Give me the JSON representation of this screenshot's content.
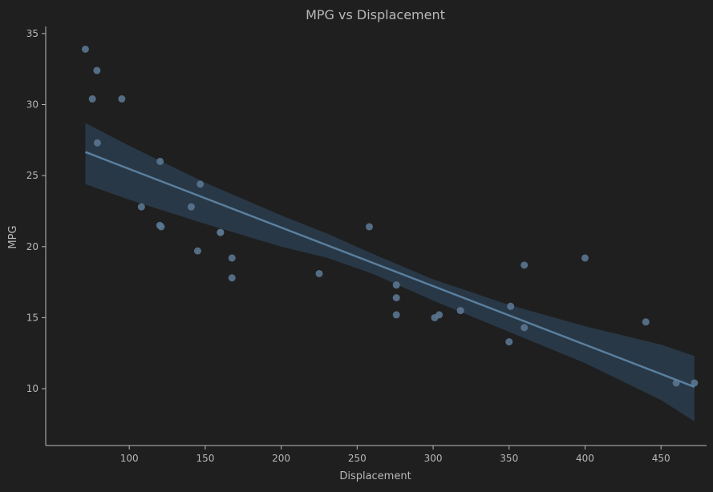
{
  "chart_data": {
    "type": "scatter",
    "title": "MPG vs Displacement",
    "xlabel": "Displacement",
    "ylabel": "MPG",
    "xlim": [
      45,
      480
    ],
    "ylim": [
      6,
      35.5
    ],
    "xticks": [
      "100",
      "150",
      "200",
      "250",
      "300",
      "350",
      "400",
      "450"
    ],
    "yticks": [
      "10",
      "15",
      "20",
      "25",
      "30",
      "35"
    ],
    "grid": false,
    "colors": {
      "background": "#1f1f1f",
      "axis": "#b8b8b8",
      "text": "#b8b8b8",
      "points": "#5a7590",
      "line": "#5a7f9e",
      "band": "#2c3d4e"
    },
    "points": [
      {
        "x": 71.1,
        "y": 33.9
      },
      {
        "x": 75.7,
        "y": 30.4
      },
      {
        "x": 78.7,
        "y": 32.4
      },
      {
        "x": 79.0,
        "y": 27.3
      },
      {
        "x": 95.1,
        "y": 30.4
      },
      {
        "x": 108.0,
        "y": 22.8
      },
      {
        "x": 120.1,
        "y": 21.5
      },
      {
        "x": 120.3,
        "y": 26.0
      },
      {
        "x": 121.0,
        "y": 21.4
      },
      {
        "x": 140.8,
        "y": 22.8
      },
      {
        "x": 145.0,
        "y": 19.7
      },
      {
        "x": 146.7,
        "y": 24.4
      },
      {
        "x": 160.0,
        "y": 21.0
      },
      {
        "x": 160.0,
        "y": 21.0
      },
      {
        "x": 167.6,
        "y": 19.2
      },
      {
        "x": 167.6,
        "y": 17.8
      },
      {
        "x": 225.0,
        "y": 18.1
      },
      {
        "x": 258.0,
        "y": 21.4
      },
      {
        "x": 275.8,
        "y": 16.4
      },
      {
        "x": 275.8,
        "y": 17.3
      },
      {
        "x": 275.8,
        "y": 15.2
      },
      {
        "x": 301.0,
        "y": 15.0
      },
      {
        "x": 304.0,
        "y": 15.2
      },
      {
        "x": 318.0,
        "y": 15.5
      },
      {
        "x": 350.0,
        "y": 13.3
      },
      {
        "x": 351.0,
        "y": 15.8
      },
      {
        "x": 360.0,
        "y": 18.7
      },
      {
        "x": 360.0,
        "y": 14.3
      },
      {
        "x": 400.0,
        "y": 19.2
      },
      {
        "x": 440.0,
        "y": 14.7
      },
      {
        "x": 460.0,
        "y": 10.4
      },
      {
        "x": 472.0,
        "y": 10.4
      }
    ],
    "regression": {
      "x": [
        71.1,
        472.0
      ],
      "y": [
        26.66,
        10.13
      ],
      "ci_upper": [
        {
          "x": 71.1,
          "y": 28.7
        },
        {
          "x": 100,
          "y": 27.1
        },
        {
          "x": 150,
          "y": 24.5
        },
        {
          "x": 200,
          "y": 22.2
        },
        {
          "x": 230.7,
          "y": 20.9
        },
        {
          "x": 260,
          "y": 19.5
        },
        {
          "x": 300,
          "y": 17.7
        },
        {
          "x": 350,
          "y": 15.9
        },
        {
          "x": 400,
          "y": 14.4
        },
        {
          "x": 450,
          "y": 13.1
        },
        {
          "x": 472.0,
          "y": 12.3
        }
      ],
      "ci_lower": [
        {
          "x": 71.1,
          "y": 24.4
        },
        {
          "x": 100,
          "y": 23.3
        },
        {
          "x": 150,
          "y": 21.6
        },
        {
          "x": 200,
          "y": 20.0
        },
        {
          "x": 230.7,
          "y": 19.2
        },
        {
          "x": 260,
          "y": 18.1
        },
        {
          "x": 300,
          "y": 16.2
        },
        {
          "x": 350,
          "y": 14.0
        },
        {
          "x": 400,
          "y": 11.8
        },
        {
          "x": 450,
          "y": 9.2
        },
        {
          "x": 472.0,
          "y": 7.7
        }
      ]
    }
  }
}
